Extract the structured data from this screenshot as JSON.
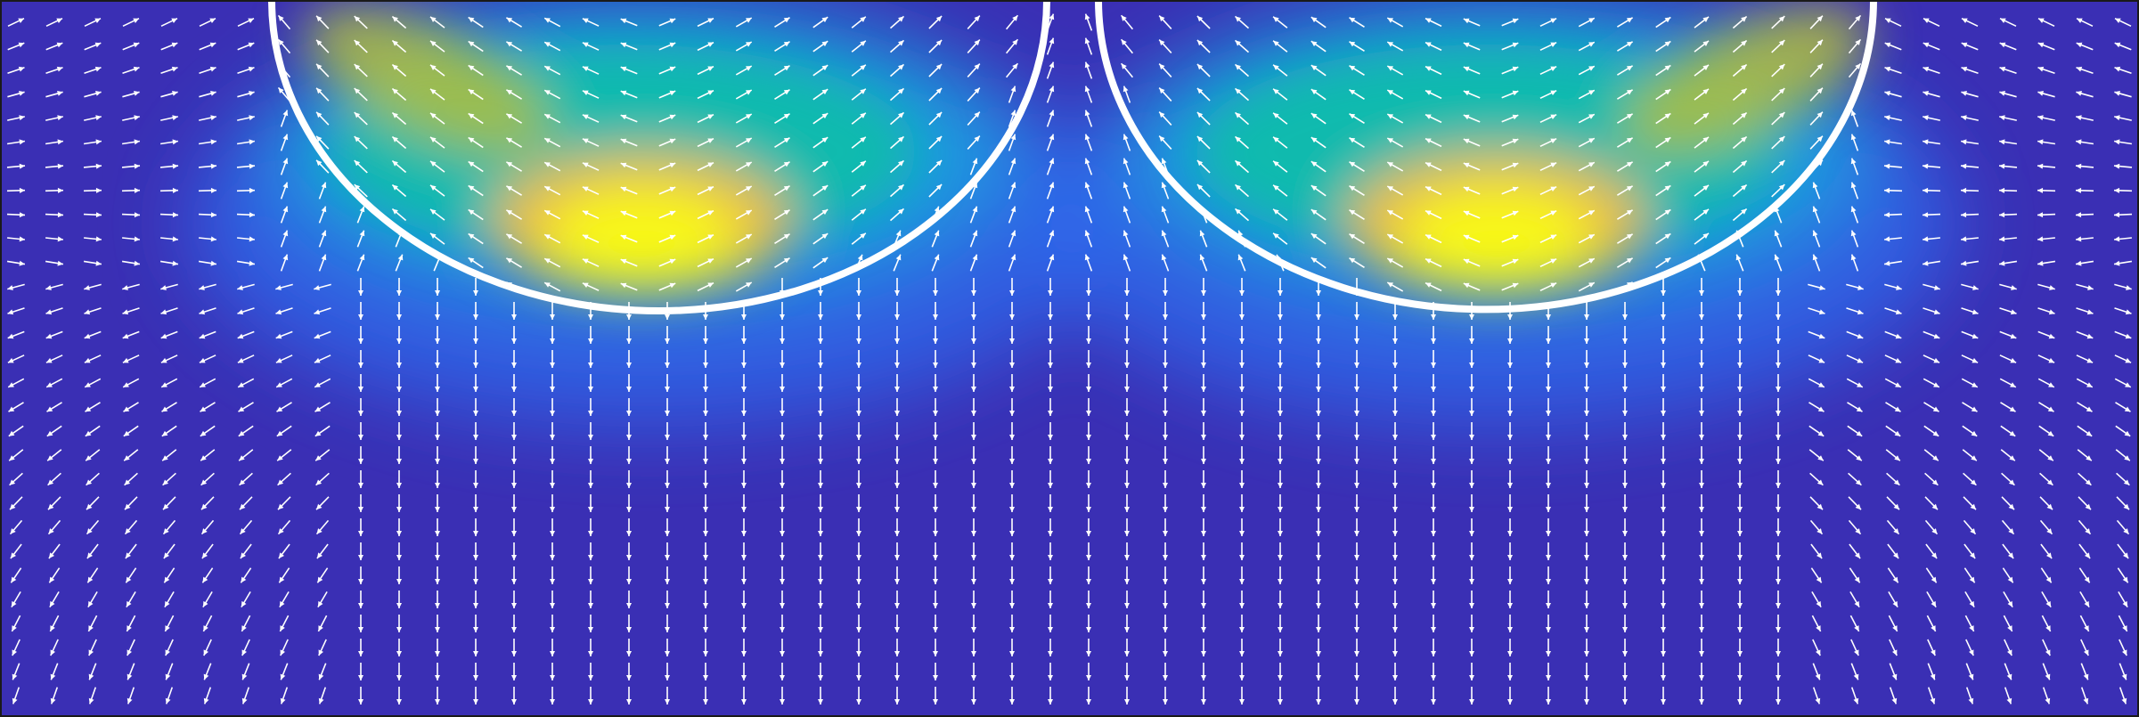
{
  "figure": {
    "kind": "velocity-field-heatmap-with-quiver",
    "colormap": [
      "#3e26a8",
      "#3f3fd9",
      "#2e6ef0",
      "#17a5df",
      "#12bea9",
      "#55c46c",
      "#b4bd3d",
      "#f8ba3d",
      "#f6e627",
      "#f9fb15"
    ],
    "background_color": "#3a2fb4",
    "arrow_color": "#ffffff",
    "interface_color": "#ffffff",
    "frame_color": "#1a1a1a",
    "interfaces": [
      {
        "name": "left-semicircle-interface"
      },
      {
        "name": "right-semicircle-interface"
      }
    ]
  }
}
